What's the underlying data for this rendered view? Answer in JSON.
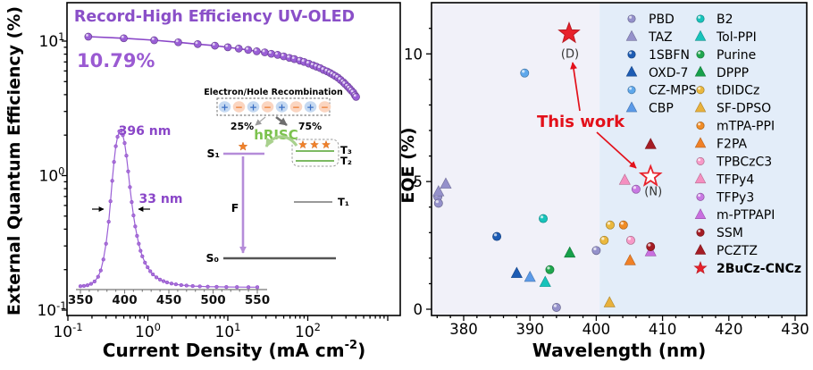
{
  "figure": {
    "name": "Record-high efficiency UV-OLED performance figure"
  },
  "chart_data": [
    {
      "id": "eqe-vs-current-density",
      "type": "line",
      "title": "Record-High Efficiency UV-OLED",
      "title_color": "#8a4fc8",
      "max_eqe_label": "10.79%",
      "accent_color": "#8a46c8",
      "xlabel_pre": "Current Density (mA cm",
      "xlabel_sup": "-2",
      "xlabel_post": ")",
      "ylabel": "External Quantum Efficiency (%)",
      "xscale": "log",
      "yscale": "log",
      "xlim": [
        0.1,
        1500
      ],
      "ylim": [
        0.091,
        19
      ],
      "x_major_ticks": [
        {
          "base": "10",
          "exp": "-1"
        },
        {
          "base": "10",
          "exp": "0"
        },
        {
          "base": "10",
          "exp": "1"
        },
        {
          "base": "10",
          "exp": "2"
        }
      ],
      "y_major_ticks": [
        {
          "base": "10",
          "exp": "-1"
        },
        {
          "base": "10",
          "exp": "0"
        },
        {
          "base": "10",
          "exp": "1"
        }
      ],
      "series": [
        {
          "name": "EQE",
          "color": "#8a46c8",
          "x": [
            0.18,
            0.5,
            1.2,
            2.4,
            4.2,
            6.9,
            10,
            13.7,
            18,
            23,
            29,
            35,
            42,
            50,
            59,
            68,
            80,
            90,
            103,
            117,
            129,
            143,
            158,
            175,
            190,
            205,
            221,
            238,
            257,
            278,
            292,
            315,
            332,
            350,
            370,
            390,
            402
          ],
          "y": [
            10.79,
            10.5,
            10.15,
            9.8,
            9.5,
            9.25,
            9.0,
            8.8,
            8.6,
            8.4,
            8.25,
            8.05,
            7.9,
            7.7,
            7.5,
            7.35,
            7.15,
            7.0,
            6.8,
            6.6,
            6.45,
            6.3,
            6.1,
            5.95,
            5.8,
            5.65,
            5.5,
            5.35,
            5.15,
            4.95,
            4.8,
            4.6,
            4.45,
            4.3,
            4.15,
            3.95,
            3.85
          ]
        }
      ],
      "inset_el_spectrum": {
        "peak_label": "396 nm",
        "fwhm_label": "33 nm",
        "x_ticks": [
          350,
          400,
          450,
          500,
          550
        ],
        "wavelength": [
          350,
          354,
          358,
          362,
          366,
          370,
          373,
          376,
          379,
          382,
          384,
          386,
          388,
          390,
          392,
          394,
          396,
          398,
          400,
          402,
          404,
          406,
          408,
          410,
          412,
          414,
          416,
          418,
          420,
          423,
          426,
          429,
          432,
          436,
          440,
          444,
          448,
          453,
          458,
          464,
          470,
          477,
          485,
          494,
          504,
          515,
          527,
          540,
          550
        ],
        "intensity": [
          0.01,
          0.012,
          0.016,
          0.025,
          0.04,
          0.07,
          0.11,
          0.18,
          0.28,
          0.42,
          0.55,
          0.68,
          0.8,
          0.9,
          0.96,
          0.995,
          1.0,
          0.97,
          0.92,
          0.84,
          0.74,
          0.64,
          0.545,
          0.46,
          0.39,
          0.33,
          0.28,
          0.235,
          0.2,
          0.16,
          0.13,
          0.105,
          0.085,
          0.066,
          0.052,
          0.042,
          0.034,
          0.027,
          0.022,
          0.017,
          0.014,
          0.011,
          0.009,
          0.007,
          0.006,
          0.005,
          0.0045,
          0.004,
          0.0038
        ]
      },
      "inset_energy_diagram": {
        "header": "Electron/Hole Recombination",
        "charges": [
          "+",
          "−",
          "+",
          "−",
          "+",
          "−",
          "+",
          "−"
        ],
        "plus_fill": "#c5d9f1",
        "plus_color": "#3b6fc4",
        "minus_fill": "#fbd5c0",
        "minus_color": "#ed7d31",
        "branch_left": "25%",
        "branch_right": "75%",
        "process_label": "hRISC",
        "process_color": "#7cc24e",
        "fluorescence_label": "F",
        "levels": {
          "s1": "S₁",
          "s0": "S₀",
          "t1": "T₁",
          "t2": "T₂",
          "t3": "T₃"
        }
      }
    },
    {
      "id": "eqe-vs-wavelength",
      "type": "scatter",
      "xlabel": "Wavelength (nm)",
      "ylabel": "EQE (%)",
      "xlim": [
        375,
        432
      ],
      "ylim": [
        -0.25,
        12
      ],
      "x_ticks": [
        380,
        390,
        400,
        410,
        420,
        430
      ],
      "y_ticks": [
        0,
        5,
        10
      ],
      "bg_left_color": "#f1f1f9",
      "bg_right_color": "#e3edf9",
      "bg_split_wavelength": 400.5,
      "annotation": "This work",
      "annotation_color": "#e3111b",
      "series": [
        {
          "name": "PBD",
          "marker": "circle",
          "color": "#9591cb",
          "points": [
            [
              376.1,
              4.4
            ],
            [
              376.2,
              4.15
            ],
            [
              394,
              0.07
            ],
            [
              400,
              2.3
            ]
          ]
        },
        {
          "name": "TAZ",
          "marker": "triangle",
          "color": "#9591cb",
          "points": [
            [
              377.3,
              4.9
            ],
            [
              376.2,
              4.6
            ]
          ]
        },
        {
          "name": "1SBFN",
          "marker": "circle",
          "color": "#1d5cb4",
          "points": [
            [
              385,
              2.85
            ]
          ]
        },
        {
          "name": "OXD-7",
          "marker": "triangle",
          "color": "#1d5cb4",
          "points": [
            [
              388,
              1.4
            ]
          ]
        },
        {
          "name": "CZ-MPS",
          "marker": "circle",
          "color": "#5fa8ec",
          "points": [
            [
              389.2,
              9.25
            ]
          ]
        },
        {
          "name": "CBP",
          "marker": "triangle",
          "color": "#5b9ae8",
          "points": [
            [
              390,
              1.25
            ]
          ]
        },
        {
          "name": "B2",
          "marker": "circle",
          "color": "#17c3bb",
          "points": [
            [
              392,
              3.55
            ]
          ]
        },
        {
          "name": "Tol-PPI",
          "marker": "triangle",
          "color": "#17c3bb",
          "points": [
            [
              392.3,
              1.05
            ]
          ]
        },
        {
          "name": "Purine",
          "marker": "circle",
          "color": "#1fa74e",
          "points": [
            [
              393,
              1.55
            ]
          ]
        },
        {
          "name": "DPPP",
          "marker": "triangle",
          "color": "#17a04a",
          "points": [
            [
              396,
              2.2
            ]
          ]
        },
        {
          "name": "tDIDCz",
          "marker": "circle",
          "color": "#eab83e",
          "points": [
            [
              402.1,
              3.3
            ],
            [
              401.2,
              2.7
            ]
          ]
        },
        {
          "name": "SF-DPSO",
          "marker": "triangle",
          "color": "#e8b13c",
          "points": [
            [
              402,
              0.25
            ]
          ]
        },
        {
          "name": "mTPA-PPI",
          "marker": "circle",
          "color": "#f08c26",
          "points": [
            [
              404.1,
              3.3
            ]
          ]
        },
        {
          "name": "F2PA",
          "marker": "triangle",
          "color": "#f08026",
          "points": [
            [
              405.1,
              1.9
            ]
          ]
        },
        {
          "name": "TPBCzC3",
          "marker": "circle",
          "color": "#f79ac8",
          "points": [
            [
              405.2,
              2.7
            ]
          ]
        },
        {
          "name": "TFPy4",
          "marker": "triangle",
          "color": "#f48fc0",
          "points": [
            [
              404.3,
              5.05
            ]
          ]
        },
        {
          "name": "TFPy3",
          "marker": "circle",
          "color": "#c879e3",
          "points": [
            [
              406,
              4.7
            ]
          ]
        },
        {
          "name": "m-PTPAPI",
          "marker": "triangle",
          "color": "#c96fe0",
          "points": [
            [
              408.2,
              2.25
            ]
          ]
        },
        {
          "name": "SSM",
          "marker": "circle",
          "color": "#a51c24",
          "points": [
            [
              408.2,
              2.45
            ]
          ]
        },
        {
          "name": "PCZTZ",
          "marker": "triangle",
          "color": "#a51c24",
          "points": [
            [
              408.2,
              6.45
            ]
          ]
        },
        {
          "name": "2BuCz-CNCz",
          "marker": "star",
          "color": "#e8212b",
          "bold": true,
          "points": [
            {
              "x": 395.9,
              "y": 10.8,
              "style": "filled",
              "tag": "(D)"
            },
            {
              "x": 408.2,
              "y": 5.2,
              "style": "open",
              "tag": "(N)"
            }
          ]
        }
      ],
      "legend": {
        "column1_count": 6,
        "position": "upper right"
      }
    }
  ]
}
